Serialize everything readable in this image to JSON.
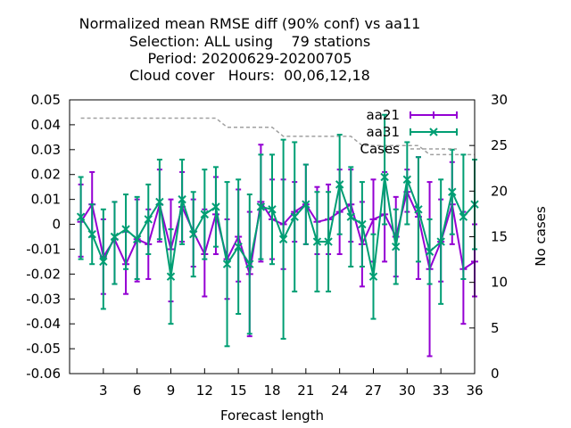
{
  "chart_data": {
    "type": "line",
    "title_lines": [
      "Normalized mean RMSE diff (90% conf) vs aa11",
      "Selection: ALL using    79 stations",
      "Period: 20200629-20200705",
      "Cloud cover   Hours:  00,06,12,18"
    ],
    "xlabel": "Forecast length",
    "ylabel_right": "No cases",
    "xlim": [
      0,
      36
    ],
    "ylim": [
      -0.06,
      0.05
    ],
    "y2lim": [
      0,
      30
    ],
    "x_ticks": [
      3,
      6,
      9,
      12,
      15,
      18,
      21,
      24,
      27,
      30,
      33,
      36
    ],
    "y_ticks": [
      "0.05",
      "0.04",
      "0.03",
      "0.02",
      "0.01",
      "0",
      "-0.01",
      "-0.02",
      "-0.03",
      "-0.04",
      "-0.05",
      "-0.06"
    ],
    "y2_ticks": [
      "30",
      "25",
      "20",
      "15",
      "10",
      "5",
      "0"
    ],
    "legend_position": "top-right",
    "x": [
      1,
      2,
      3,
      4,
      5,
      6,
      7,
      8,
      9,
      10,
      11,
      12,
      13,
      14,
      15,
      16,
      17,
      18,
      19,
      20,
      21,
      22,
      23,
      24,
      25,
      26,
      27,
      28,
      29,
      30,
      31,
      32,
      33,
      34,
      35,
      36
    ],
    "series": [
      {
        "name": "aa21",
        "color": "#9400d3",
        "marker": "plus",
        "values": [
          0.001,
          0.008,
          -0.013,
          -0.006,
          -0.016,
          -0.006,
          -0.008,
          0.008,
          -0.01,
          0.007,
          -0.003,
          -0.012,
          0.004,
          -0.014,
          -0.005,
          -0.02,
          0.009,
          0.002,
          0.0,
          0.005,
          0.008,
          0.001,
          0.002,
          0.005,
          0.008,
          -0.008,
          0.002,
          0.004,
          -0.005,
          0.013,
          0.003,
          -0.018,
          -0.007,
          0.008,
          -0.018,
          -0.015
        ],
        "err_low": [
          -0.013,
          -0.005,
          -0.028,
          -0.024,
          -0.028,
          -0.023,
          -0.022,
          -0.007,
          -0.031,
          -0.007,
          -0.017,
          -0.029,
          -0.012,
          -0.03,
          -0.023,
          -0.045,
          -0.015,
          -0.014,
          -0.018,
          -0.007,
          -0.008,
          -0.012,
          -0.012,
          -0.012,
          -0.007,
          -0.025,
          -0.015,
          -0.015,
          -0.021,
          0.005,
          -0.022,
          -0.053,
          -0.023,
          -0.008,
          -0.04,
          -0.029
        ],
        "err_high": [
          0.016,
          0.021,
          0.002,
          0.009,
          -0.003,
          0.01,
          0.006,
          0.022,
          0.01,
          0.021,
          0.01,
          0.006,
          0.019,
          0.002,
          0.014,
          0.005,
          0.032,
          0.018,
          0.018,
          0.017,
          0.024,
          0.015,
          0.016,
          0.022,
          0.022,
          0.009,
          0.018,
          0.021,
          0.011,
          0.022,
          0.027,
          0.017,
          0.01,
          0.025,
          0.005,
          0.0
        ]
      },
      {
        "name": "aa31",
        "color": "#009e73",
        "marker": "cross",
        "values": [
          0.003,
          -0.004,
          -0.015,
          -0.005,
          -0.002,
          -0.006,
          0.002,
          0.009,
          -0.021,
          0.01,
          -0.004,
          0.004,
          0.007,
          -0.016,
          -0.009,
          -0.016,
          0.007,
          0.006,
          -0.006,
          0.003,
          0.008,
          -0.007,
          -0.007,
          0.016,
          0.003,
          0.0,
          -0.021,
          0.019,
          -0.009,
          0.018,
          0.006,
          -0.011,
          -0.007,
          0.013,
          0.003,
          0.008
        ],
        "err_low": [
          -0.014,
          -0.016,
          -0.034,
          -0.024,
          -0.018,
          -0.022,
          -0.012,
          -0.006,
          -0.04,
          -0.008,
          -0.021,
          -0.014,
          -0.009,
          -0.049,
          -0.036,
          -0.044,
          -0.014,
          -0.016,
          -0.046,
          -0.027,
          -0.008,
          -0.027,
          -0.027,
          -0.004,
          -0.017,
          -0.017,
          -0.038,
          0.0,
          -0.024,
          0.0,
          -0.015,
          -0.024,
          -0.032,
          -0.004,
          -0.022,
          -0.01
        ],
        "err_high": [
          0.019,
          0.008,
          0.006,
          0.009,
          0.012,
          0.011,
          0.016,
          0.026,
          -0.002,
          0.026,
          0.013,
          0.022,
          0.023,
          0.017,
          0.018,
          0.012,
          0.028,
          0.028,
          0.034,
          0.033,
          0.024,
          0.013,
          0.013,
          0.036,
          0.023,
          0.017,
          -0.004,
          0.044,
          0.006,
          0.033,
          0.027,
          0.002,
          0.018,
          0.03,
          0.028,
          0.026
        ]
      },
      {
        "name": "Cases",
        "color": "#a0a0a0",
        "style": "dashed",
        "axis": "right",
        "values": [
          28,
          28,
          28,
          28,
          28,
          28,
          28,
          28,
          28,
          28,
          28,
          28,
          28,
          27,
          27,
          27,
          27,
          27,
          26,
          26,
          26,
          26,
          26,
          26,
          26,
          25,
          25,
          25,
          25,
          25,
          25,
          24,
          24,
          24,
          24,
          24
        ]
      }
    ]
  }
}
